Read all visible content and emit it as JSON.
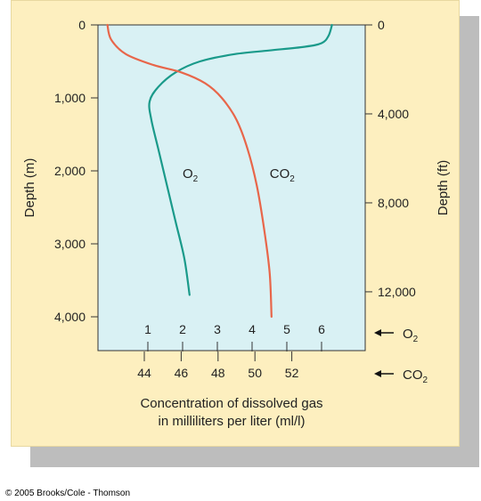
{
  "chart_data": {
    "type": "line",
    "title": "",
    "left_axis": {
      "label": "Depth (m)",
      "range": [
        0,
        4000
      ],
      "ticks": [
        0,
        1000,
        2000,
        3000,
        4000
      ],
      "tick_labels": [
        "0",
        "1,000",
        "2,000",
        "3,000",
        "4,000"
      ]
    },
    "right_axis": {
      "label": "Depth (ft)",
      "range": [
        0,
        13123
      ],
      "ticks": [
        0,
        4000,
        8000,
        12000
      ],
      "tick_labels": [
        "0",
        "4,000",
        "8,000",
        "12,000"
      ]
    },
    "bottom_axes": [
      {
        "gas": "O2",
        "gas_base": "O",
        "gas_sub": "2",
        "unit": "ml/l",
        "range": [
          0,
          7
        ],
        "ticks": [
          1,
          2,
          3,
          4,
          5,
          6
        ],
        "tick_labels": [
          "1",
          "2",
          "3",
          "4",
          "5",
          "6"
        ]
      },
      {
        "gas": "CO2",
        "gas_base": "CO",
        "gas_sub": "2",
        "unit": "ml/l",
        "range": [
          40,
          54
        ],
        "ticks": [
          44,
          46,
          48,
          50,
          52
        ],
        "tick_labels": [
          "44",
          "46",
          "48",
          "50",
          "52"
        ]
      }
    ],
    "xlabel_lines": [
      "Concentration of dissolved gas",
      "in milliliters per liter (ml/l)"
    ],
    "series": [
      {
        "name": "O2",
        "label_base": "O",
        "label_sub": "2",
        "axis": 0,
        "color": "#1a9a8a",
        "label_at": [
          2.0,
          2100
        ],
        "points": [
          [
            6.3,
            0
          ],
          [
            6.2,
            150
          ],
          [
            6.0,
            250
          ],
          [
            5.5,
            300
          ],
          [
            4.5,
            350
          ],
          [
            3.5,
            400
          ],
          [
            2.5,
            500
          ],
          [
            1.8,
            650
          ],
          [
            1.3,
            850
          ],
          [
            1.05,
            1050
          ],
          [
            1.1,
            1300
          ],
          [
            1.3,
            1700
          ],
          [
            1.55,
            2200
          ],
          [
            1.8,
            2700
          ],
          [
            2.05,
            3200
          ],
          [
            2.2,
            3700
          ]
        ]
      },
      {
        "name": "CO2",
        "label_base": "CO",
        "label_sub": "2",
        "axis": 1,
        "color": "#e8664a",
        "label_at": [
          50.8,
          2100
        ],
        "points": [
          [
            42.0,
            0
          ],
          [
            42.2,
            200
          ],
          [
            43.0,
            400
          ],
          [
            44.5,
            550
          ],
          [
            46.0,
            650
          ],
          [
            47.3,
            800
          ],
          [
            48.2,
            1000
          ],
          [
            49.0,
            1300
          ],
          [
            49.6,
            1700
          ],
          [
            50.1,
            2200
          ],
          [
            50.5,
            2800
          ],
          [
            50.8,
            3400
          ],
          [
            50.9,
            4000
          ]
        ]
      }
    ]
  },
  "footer": {
    "credit": "© 2005 Brooks/Cole - Thomson"
  }
}
